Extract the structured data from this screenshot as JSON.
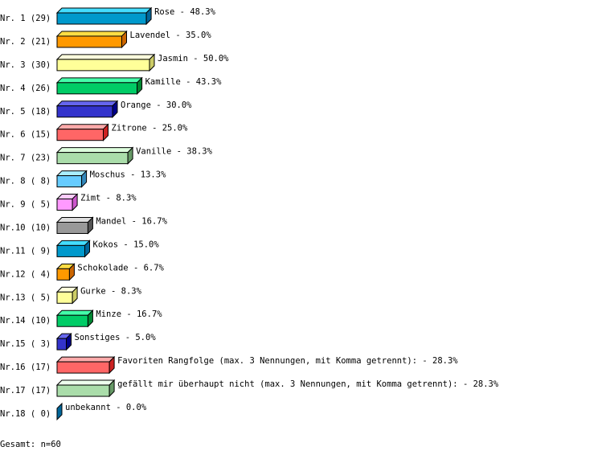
{
  "chart_data": {
    "type": "bar",
    "orientation": "horizontal",
    "style": "3d",
    "xlim": [
      0,
      50
    ],
    "grid": false,
    "categories": [
      "Nr. 1 (29)",
      "Nr. 2 (21)",
      "Nr. 3 (30)",
      "Nr. 4 (26)",
      "Nr. 5 (18)",
      "Nr. 6 (15)",
      "Nr. 7 (23)",
      "Nr. 8 ( 8)",
      "Nr. 9 ( 5)",
      "Nr.10 (10)",
      "Nr.11 ( 9)",
      "Nr.12 ( 4)",
      "Nr.13 ( 5)",
      "Nr.14 (10)",
      "Nr.15 ( 3)",
      "Nr.16 (17)",
      "Nr.17 (17)",
      "Nr.18 ( 0)"
    ],
    "labels": [
      "Rose -  48.3%",
      "Lavendel -  35.0%",
      "Jasmin -  50.0%",
      "Kamille -  43.3%",
      "Orange -  30.0%",
      "Zitrone -  25.0%",
      "Vanille -  38.3%",
      "Moschus -  13.3%",
      "Zimt -   8.3%",
      "Mandel -  16.7%",
      "Kokos -  15.0%",
      "Schokolade -   6.7%",
      "Gurke -   8.3%",
      "Minze -  16.7%",
      "Sonstiges -   5.0%",
      "Favoriten Rangfolge (max. 3 Nennungen, mit Komma getrennt): -  28.3%",
      "gefällt mir überhaupt nicht (max. 3 Nennungen, mit Komma getrennt): -  28.3%",
      "unbekannt -   0.0%"
    ],
    "values": [
      48.3,
      35.0,
      50.0,
      43.3,
      30.0,
      25.0,
      38.3,
      13.3,
      8.3,
      16.7,
      15.0,
      6.7,
      8.3,
      16.7,
      5.0,
      28.3,
      28.3,
      0.0
    ],
    "colors": [
      [
        "#44ddff",
        "#0099cc",
        "#006699"
      ],
      [
        "#ffdd44",
        "#ff9900",
        "#cc6600"
      ],
      [
        "#ffffdd",
        "#ffff99",
        "#cccc66"
      ],
      [
        "#44ffaa",
        "#00cc66",
        "#008833"
      ],
      [
        "#6666ee",
        "#3333cc",
        "#000088"
      ],
      [
        "#ffaaaa",
        "#ff6666",
        "#cc2222"
      ],
      [
        "#ddffdd",
        "#aaddaa",
        "#669966"
      ],
      [
        "#aaeeff",
        "#66ccff",
        "#3388bb"
      ],
      [
        "#ffccff",
        "#ff99ff",
        "#cc55cc"
      ],
      [
        "#dddddd",
        "#999999",
        "#555555"
      ],
      [
        "#44ddff",
        "#0099cc",
        "#006699"
      ],
      [
        "#ffdd44",
        "#ff9900",
        "#cc6600"
      ],
      [
        "#ffffdd",
        "#ffff99",
        "#cccc66"
      ],
      [
        "#44ffaa",
        "#00cc66",
        "#008833"
      ],
      [
        "#6666ee",
        "#3333cc",
        "#000088"
      ],
      [
        "#ffaaaa",
        "#ff6666",
        "#cc2222"
      ],
      [
        "#eeffee",
        "#aaddaa",
        "#669966"
      ],
      [
        "#44ddff",
        "#0099cc",
        "#006699"
      ]
    ]
  },
  "footer": "Gesamt: n=60"
}
